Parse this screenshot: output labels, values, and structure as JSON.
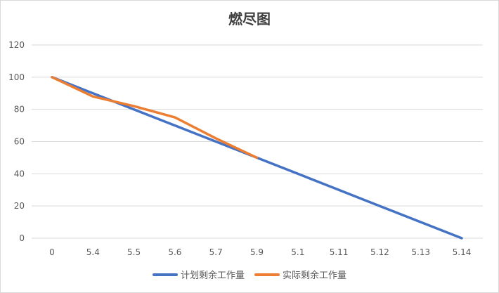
{
  "chart_data": {
    "type": "line",
    "title": "燃尽图",
    "xlabel": "",
    "ylabel": "",
    "categories": [
      "0",
      "5.4",
      "5.5",
      "5.6",
      "5.7",
      "5.9",
      "5.1",
      "5.11",
      "5.12",
      "5.13",
      "5.14"
    ],
    "ylim": [
      0,
      120
    ],
    "yticks": [
      0,
      20,
      40,
      60,
      80,
      100,
      120
    ],
    "grid": "horizontal",
    "legend_position": "bottom",
    "series": [
      {
        "name": "计划剩余工作量",
        "color": "#4472c4",
        "values": [
          100,
          90,
          80,
          70,
          60,
          50,
          40,
          30,
          20,
          10,
          0
        ]
      },
      {
        "name": "实际剩余工作量",
        "color": "#ed7d31",
        "values": [
          100,
          88,
          82,
          75,
          62,
          50,
          null,
          null,
          null,
          null,
          null
        ]
      }
    ]
  }
}
